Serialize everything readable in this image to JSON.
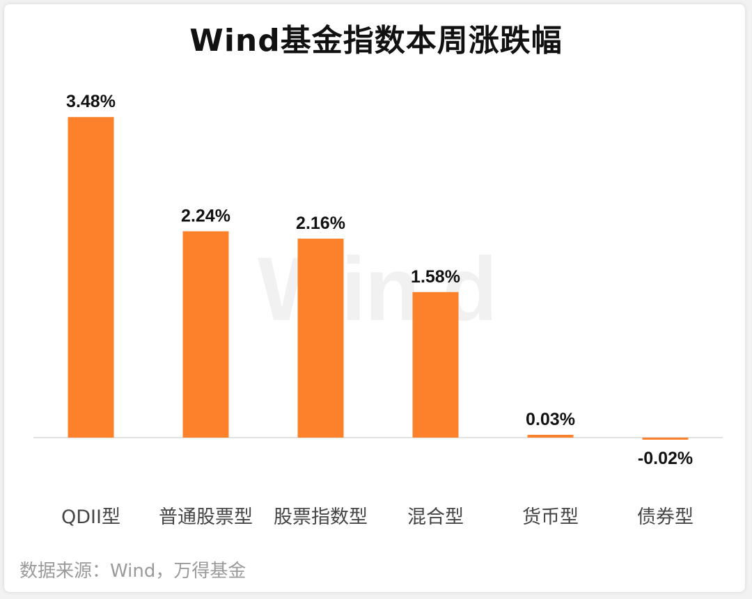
{
  "title": "Wind基金指数本周涨跌幅",
  "watermark_text": "Win.d",
  "source": "数据来源：Wind，万得基金",
  "colors": {
    "bar": "#fd802b",
    "baseline": "#d9d9d9",
    "value_label": "#111111",
    "category_label": "#444444"
  },
  "chart_data": {
    "type": "bar",
    "title": "Wind基金指数本周涨跌幅",
    "xlabel": "",
    "ylabel": "",
    "categories": [
      "QDII型",
      "普通股票型",
      "股票指数型",
      "混合型",
      "货币型",
      "债券型"
    ],
    "values": [
      3.48,
      2.24,
      2.16,
      1.58,
      0.03,
      -0.02
    ],
    "value_labels": [
      "3.48%",
      "2.24%",
      "2.16%",
      "1.58%",
      "0.03%",
      "-0.02%"
    ],
    "unit": "%",
    "grid": false,
    "legend": "none"
  }
}
